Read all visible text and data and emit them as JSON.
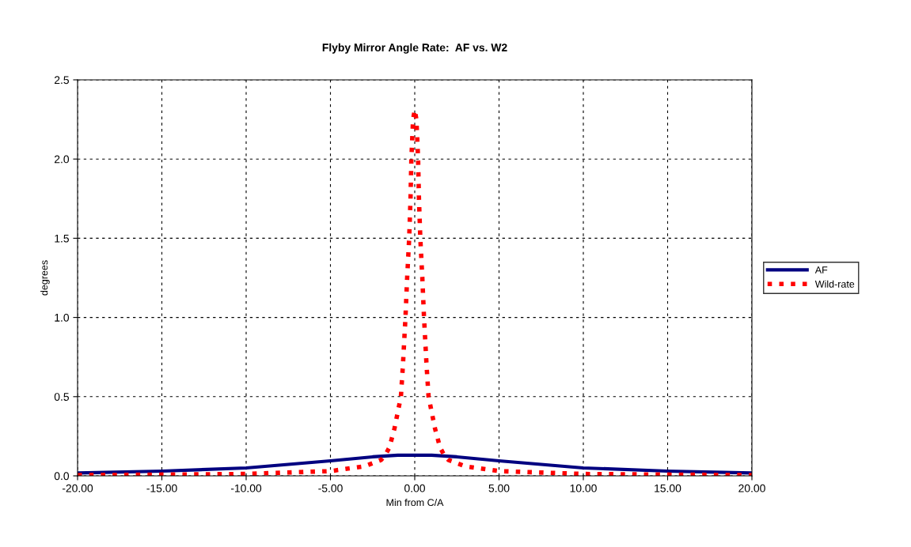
{
  "chart_data": {
    "type": "line",
    "title": "Flyby Mirror Angle Rate:  AF vs. W2",
    "xlabel": "Min from C/A",
    "ylabel": "degrees",
    "xlim": [
      -20,
      20
    ],
    "ylim": [
      0,
      2.5
    ],
    "xticks": [
      {
        "value": -20,
        "label": "-20.00"
      },
      {
        "value": -15,
        "label": "-15.00"
      },
      {
        "value": -10,
        "label": "-10.00"
      },
      {
        "value": -5,
        "label": "-5.00"
      },
      {
        "value": 0,
        "label": "0.00"
      },
      {
        "value": 5,
        "label": "5.00"
      },
      {
        "value": 10,
        "label": "10.00"
      },
      {
        "value": 15,
        "label": "15.00"
      },
      {
        "value": 20,
        "label": "20.00"
      }
    ],
    "yticks": [
      {
        "value": 0,
        "label": "0.0"
      },
      0.5,
      {
        "value": 1,
        "label": "1.0"
      },
      1.5,
      {
        "value": 2,
        "label": "2.0"
      },
      2.5
    ],
    "grid": true,
    "legend": "right",
    "marker": "none",
    "series": [
      {
        "name": "AF",
        "color": "#000080",
        "line_style": "solid",
        "x": [
          -20,
          -15,
          -10,
          -5,
          -2.5,
          -1,
          0,
          1,
          2.5,
          5,
          10,
          15,
          20
        ],
        "values": [
          0.018,
          0.03,
          0.05,
          0.095,
          0.12,
          0.13,
          0.13,
          0.13,
          0.12,
          0.095,
          0.05,
          0.03,
          0.018
        ]
      },
      {
        "name": "Wild-rate",
        "color": "#ff0000",
        "line_style": "dotted",
        "x": [
          -20,
          -15,
          -10,
          -5,
          -3,
          -2,
          -1.75,
          -1.5,
          -1.2,
          -0.82,
          -0.7,
          -0.55,
          -0.45,
          -0.33,
          -0.25,
          -0.2,
          -0.1,
          0,
          0.1,
          0.2,
          0.25,
          0.33,
          0.45,
          0.55,
          0.7,
          0.82,
          1.2,
          1.5,
          1.75,
          2,
          3,
          5,
          10,
          15,
          20
        ],
        "values": [
          0.005,
          0.008,
          0.012,
          0.03,
          0.06,
          0.1,
          0.13,
          0.18,
          0.3,
          0.5,
          0.7,
          1.0,
          1.25,
          1.5,
          1.75,
          2.0,
          2.25,
          2.31,
          2.25,
          2.0,
          1.75,
          1.5,
          1.25,
          1.0,
          0.7,
          0.5,
          0.3,
          0.18,
          0.13,
          0.1,
          0.06,
          0.03,
          0.012,
          0.008,
          0.005
        ]
      }
    ]
  }
}
